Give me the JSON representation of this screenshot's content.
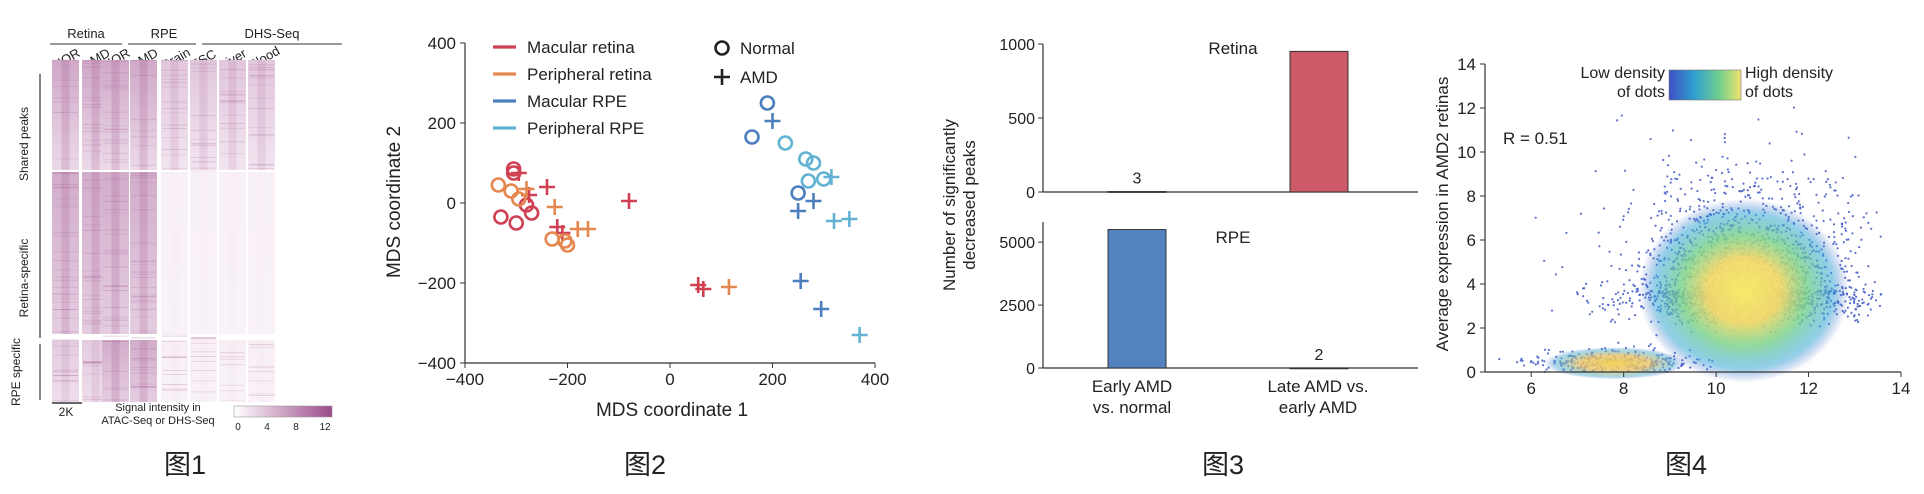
{
  "fig1": {
    "caption": "图1",
    "group_labels": [
      "Retina",
      "RPE",
      "DHS-Seq"
    ],
    "column_labels": [
      "NOR",
      "AMD",
      "NOR",
      "AMD",
      "Brain",
      "ESC",
      "Liver",
      "Blood"
    ],
    "row_groups": [
      "Shared peaks",
      "Retina-specific",
      "RPE specific"
    ],
    "scale_bar_label": "2K",
    "colorbar_title_line1": "Signal intensity in",
    "colorbar_title_line2": "ATAC-Seq or DHS-Seq",
    "colorbar_ticks": [
      "0",
      "4",
      "8",
      "12"
    ],
    "colormap": [
      "#ffffff",
      "#9b4a8a"
    ]
  },
  "fig2": {
    "caption": "图2",
    "chart_data": {
      "type": "scatter",
      "xlabel": "MDS coordinate 1",
      "ylabel": "MDS coordinate 2",
      "xlim": [
        -400,
        400
      ],
      "ylim": [
        -400,
        400
      ],
      "xticks": [
        "−400",
        "−200",
        "0",
        "200",
        "400"
      ],
      "yticks": [
        "−400",
        "−200",
        "0",
        "200",
        "400"
      ],
      "marker_legend": [
        "Normal",
        "AMD"
      ],
      "series": [
        {
          "name": "Macular retina",
          "color": "#cf4152",
          "normal": [
            [
              -305,
              85
            ],
            [
              -280,
              -5
            ],
            [
              -330,
              -35
            ],
            [
              -300,
              -50
            ],
            [
              -270,
              -25
            ],
            [
              -305,
              75
            ]
          ],
          "amd": [
            [
              -295,
              75
            ],
            [
              -275,
              20
            ],
            [
              -240,
              40
            ],
            [
              -220,
              -60
            ],
            [
              -210,
              -75
            ],
            [
              -80,
              5
            ],
            [
              55,
              -205
            ],
            [
              65,
              -215
            ]
          ]
        },
        {
          "name": "Peripheral retina",
          "color": "#e5884f",
          "normal": [
            [
              -335,
              45
            ],
            [
              -310,
              30
            ],
            [
              -295,
              10
            ],
            [
              -230,
              -90
            ],
            [
              -200,
              -105
            ],
            [
              -205,
              -95
            ]
          ],
          "amd": [
            [
              -280,
              35
            ],
            [
              -225,
              -10
            ],
            [
              -180,
              -65
            ],
            [
              -160,
              -65
            ],
            [
              115,
              -210
            ]
          ]
        },
        {
          "name": "Macular RPE",
          "color": "#4c7fbd",
          "normal": [
            [
              190,
              250
            ],
            [
              160,
              165
            ],
            [
              250,
              25
            ]
          ],
          "amd": [
            [
              200,
              205
            ],
            [
              250,
              -20
            ],
            [
              280,
              5
            ],
            [
              255,
              -195
            ],
            [
              295,
              -265
            ]
          ]
        },
        {
          "name": "Peripheral RPE",
          "color": "#62b3d3",
          "normal": [
            [
              225,
              150
            ],
            [
              265,
              110
            ],
            [
              280,
              100
            ],
            [
              270,
              55
            ],
            [
              300,
              60
            ]
          ],
          "amd": [
            [
              315,
              65
            ],
            [
              320,
              -45
            ],
            [
              350,
              -40
            ],
            [
              370,
              -330
            ]
          ]
        }
      ]
    }
  },
  "fig3": {
    "caption": "图3",
    "ylabel_line1": "Number of significantly",
    "ylabel_line2": "decreased peaks",
    "categories_line1": [
      "Early AMD",
      "Late AMD vs."
    ],
    "categories_line2": [
      "vs. normal",
      "early AMD"
    ],
    "chart_data": [
      {
        "type": "bar",
        "title": "Retina",
        "categories": [
          "Early AMD vs. normal",
          "Late AMD vs. early AMD"
        ],
        "values": [
          3,
          950
        ],
        "ylim": [
          0,
          1000
        ],
        "yticks": [
          "0",
          "500",
          "1000"
        ],
        "color": "#cd5a66",
        "data_labels": [
          "3",
          ""
        ]
      },
      {
        "type": "bar",
        "title": "RPE",
        "categories": [
          "Early AMD vs. normal",
          "Late AMD vs. early AMD"
        ],
        "values": [
          5500,
          2
        ],
        "ylim": [
          0,
          5800
        ],
        "yticks": [
          "0",
          "2500",
          "5000"
        ],
        "color": "#5282c0",
        "data_labels": [
          "",
          "2"
        ]
      }
    ]
  },
  "fig4": {
    "caption": "图4",
    "chart_data": {
      "type": "scatter",
      "subtype": "density-scatter",
      "xlabel": "",
      "ylabel": "Average expression in AMD2 retinas",
      "xlim": [
        5,
        14
      ],
      "ylim": [
        0,
        14
      ],
      "xticks": [
        "6",
        "8",
        "10",
        "12",
        "14"
      ],
      "yticks": [
        "0",
        "2",
        "4",
        "6",
        "8",
        "10",
        "12",
        "14"
      ],
      "annotation": "R = 0.51",
      "density_low_label_line1": "Low density",
      "density_low_label_line2": "of dots",
      "density_high_label_line1": "High density",
      "density_high_label_line2": "of dots",
      "clusters": [
        {
          "cx": 10.6,
          "cy": 3.7,
          "sx": 1.1,
          "sy": 1.6
        },
        {
          "cx": 7.8,
          "cy": 0.4,
          "sx": 0.8,
          "sy": 0.3
        }
      ],
      "point_color": "#3f58c4",
      "density_colors": [
        "#3e50c4",
        "#2f9fd0",
        "#6fcf8d",
        "#f2e36f"
      ]
    }
  }
}
